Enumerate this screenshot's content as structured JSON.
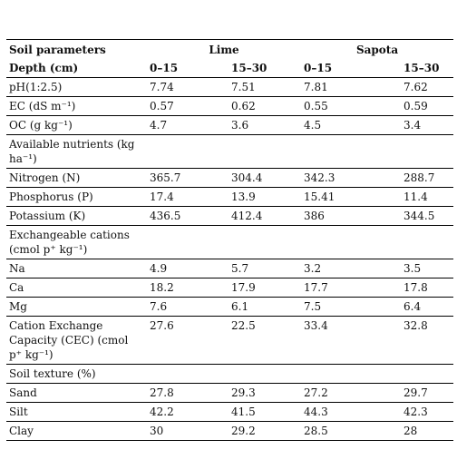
{
  "table": {
    "header": [
      "Soil parameters",
      "Lime",
      "Sapota"
    ],
    "depth": [
      "Depth (cm)",
      "0–15",
      "15–30",
      "0–15",
      "15–30"
    ],
    "rows": [
      [
        "pH(1:2.5)",
        "7.74",
        "7.51",
        "7.81",
        "7.62"
      ],
      [
        "EC (dS m⁻¹)",
        "0.57",
        "0.62",
        "0.55",
        "0.59"
      ],
      [
        "OC (g kg⁻¹)",
        "4.7",
        "3.6",
        "4.5",
        "3.4"
      ],
      [
        "Available nutrients (kg ha⁻¹)"
      ],
      [
        "Nitrogen (N)",
        "365.7",
        "304.4",
        "342.3",
        "288.7"
      ],
      [
        "Phosphorus (P)",
        "17.4",
        "13.9",
        "15.41",
        "11.4"
      ],
      [
        "Potassium (K)",
        "436.5",
        "412.4",
        "386",
        "344.5"
      ],
      [
        "Exchangeable cations (cmol p⁺ kg⁻¹)"
      ],
      [
        "Na",
        "4.9",
        "5.7",
        "3.2",
        "3.5"
      ],
      [
        "Ca",
        "18.2",
        "17.9",
        "17.7",
        "17.8"
      ],
      [
        "Mg",
        "7.6",
        "6.1",
        "7.5",
        "6.4"
      ],
      [
        "Cation Exchange Capacity (CEC) (cmol p⁺ kg⁻¹)",
        "27.6",
        "22.5",
        "33.4",
        "32.8"
      ],
      [
        "Soil texture (%)"
      ],
      [
        "Sand",
        "27.8",
        "29.3",
        "27.2",
        "29.7"
      ],
      [
        "Silt",
        "42.2",
        "41.5",
        "44.3",
        "42.3"
      ],
      [
        "Clay",
        "30",
        "29.2",
        "28.5",
        "28"
      ]
    ]
  }
}
